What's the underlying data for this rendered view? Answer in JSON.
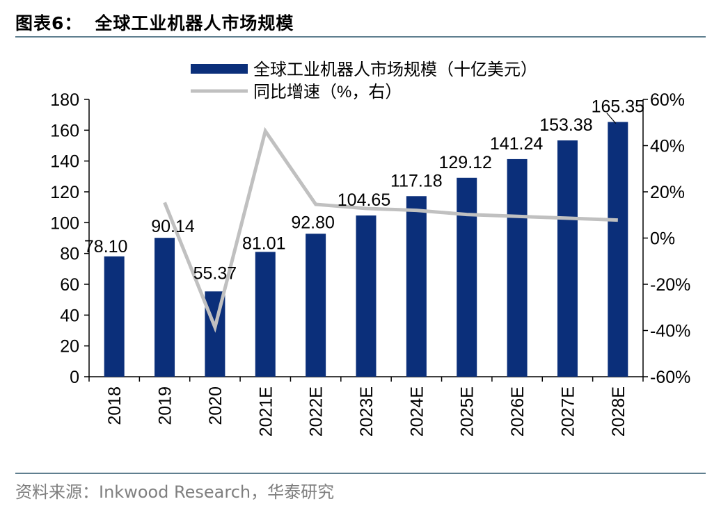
{
  "figure": {
    "label": "图表6：",
    "title": "全球工业机器人市场规模",
    "source": "资料来源：Inkwood Research，华泰研究"
  },
  "colors": {
    "bar": "#0b2f7a",
    "line": "#c0c0c0",
    "axis": "#000000",
    "rule": "#5f7f8f",
    "source_text": "#7f7f7f"
  },
  "chart_data": {
    "type": "bar",
    "categories": [
      "2018",
      "2019",
      "2020",
      "2021E",
      "2022E",
      "2023E",
      "2024E",
      "2025E",
      "2026E",
      "2027E",
      "2028E"
    ],
    "series": [
      {
        "name": "全球工业机器人市场规模（十亿美元）",
        "type": "bar",
        "axis": "left",
        "values": [
          78.1,
          90.14,
          55.37,
          81.01,
          92.8,
          104.65,
          117.18,
          129.12,
          141.24,
          153.38,
          165.35
        ],
        "labels": [
          "78.10",
          "90.14",
          "55.37",
          "81.01",
          "92.80",
          "104.65",
          "117.18",
          "129.12",
          "141.24",
          "153.38",
          "165.35"
        ]
      },
      {
        "name": "同比增速（%，右）",
        "type": "line",
        "axis": "right",
        "values": [
          null,
          15.4,
          -38.6,
          46.3,
          14.6,
          12.8,
          12.0,
          10.2,
          9.4,
          8.6,
          7.8
        ]
      }
    ],
    "y_left": {
      "min": 0,
      "max": 180,
      "ticks": [
        "0",
        "20",
        "40",
        "60",
        "80",
        "100",
        "120",
        "140",
        "160",
        "180"
      ]
    },
    "y_right": {
      "min": -60,
      "max": 60,
      "ticks": [
        "-60%",
        "-40%",
        "-20%",
        "0%",
        "20%",
        "40%",
        "60%"
      ]
    },
    "grid": false,
    "legend_position": "top"
  }
}
